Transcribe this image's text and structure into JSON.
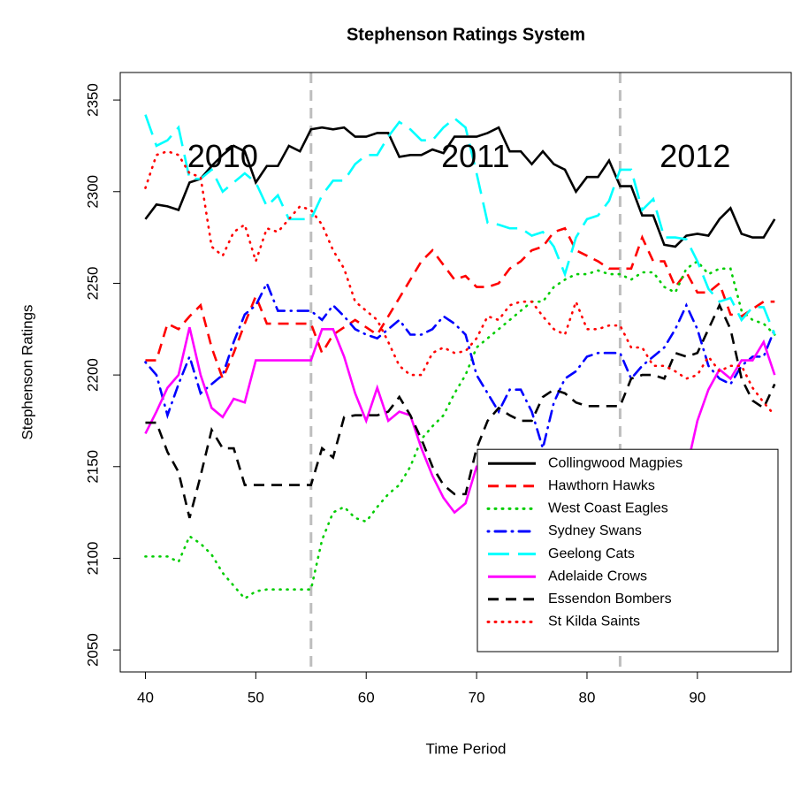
{
  "chart_data": {
    "type": "line",
    "title": "Stephenson  Ratings System",
    "xlabel": "Time Period",
    "ylabel": "Stephenson  Ratings",
    "x": [
      40,
      41,
      42,
      43,
      44,
      45,
      46,
      47,
      48,
      49,
      50,
      51,
      52,
      53,
      54,
      55,
      56,
      57,
      58,
      59,
      60,
      61,
      62,
      63,
      64,
      65,
      66,
      67,
      68,
      69,
      70,
      71,
      72,
      73,
      74,
      75,
      76,
      77,
      78,
      79,
      80,
      81,
      82,
      83,
      84,
      85,
      86,
      87,
      88,
      89,
      90,
      91,
      92,
      93,
      94,
      95,
      96,
      97
    ],
    "xlim": [
      37.72,
      98.5
    ],
    "xticks": [
      40,
      50,
      60,
      70,
      80,
      90
    ],
    "ylim": [
      2038,
      2365
    ],
    "yticks": [
      2050,
      2100,
      2150,
      2200,
      2250,
      2300,
      2350
    ],
    "vlines": [
      55,
      83
    ],
    "vline_color": "#bebebe",
    "annotations": [
      {
        "text": "2010",
        "x": 47,
        "y": 2318
      },
      {
        "text": "2011",
        "x": 69.9,
        "y": 2318
      },
      {
        "text": "2012",
        "x": 89.8,
        "y": 2318
      }
    ],
    "legend": "bottomright",
    "series": [
      {
        "name": "Collingwood Magpies",
        "color": "#000000",
        "linestyle": "solid",
        "values": [
          2285,
          2293,
          2292,
          2290,
          2305,
          2307,
          2314,
          2320,
          2325,
          2322,
          2305,
          2314,
          2314,
          2325,
          2322,
          2334,
          2335,
          2334,
          2335,
          2330,
          2330,
          2332,
          2332,
          2319,
          2320,
          2320,
          2323,
          2321,
          2330,
          2330,
          2330,
          2332,
          2335,
          2322,
          2322,
          2315,
          2322,
          2315,
          2312,
          2300,
          2308,
          2308,
          2317,
          2303,
          2303,
          2287,
          2287,
          2271,
          2270,
          2276,
          2277,
          2276,
          2285,
          2291,
          2277,
          2275,
          2275,
          2285
        ]
      },
      {
        "name": "Hawthorn Hawks",
        "color": "#ff0000",
        "linestyle": "dashed",
        "values": [
          2208,
          2208,
          2228,
          2225,
          2232,
          2238,
          2215,
          2198,
          2212,
          2228,
          2243,
          2228,
          2228,
          2228,
          2228,
          2228,
          2212,
          2222,
          2226,
          2230,
          2226,
          2222,
          2232,
          2242,
          2252,
          2262,
          2268,
          2260,
          2252,
          2254,
          2248,
          2248,
          2250,
          2258,
          2262,
          2268,
          2270,
          2278,
          2280,
          2268,
          2265,
          2262,
          2258,
          2258,
          2258,
          2275,
          2262,
          2262,
          2248,
          2256,
          2245,
          2245,
          2250,
          2233,
          2232,
          2236,
          2240,
          2240
        ]
      },
      {
        "name": "West Coast Eagles",
        "color": "#00cd00",
        "linestyle": "dotted",
        "values": [
          2101,
          2101,
          2101,
          2098,
          2112,
          2108,
          2102,
          2092,
          2085,
          2078,
          2082,
          2083,
          2083,
          2083,
          2083,
          2083,
          2110,
          2125,
          2128,
          2122,
          2120,
          2128,
          2135,
          2140,
          2150,
          2165,
          2172,
          2178,
          2190,
          2200,
          2215,
          2220,
          2225,
          2230,
          2235,
          2240,
          2240,
          2248,
          2252,
          2255,
          2255,
          2257,
          2255,
          2255,
          2252,
          2256,
          2256,
          2248,
          2245,
          2258,
          2262,
          2255,
          2258,
          2258,
          2235,
          2230,
          2228,
          2222
        ]
      },
      {
        "name": "Sydney Swans",
        "color": "#0000ff",
        "linestyle": "dotdash",
        "values": [
          2207,
          2200,
          2178,
          2195,
          2210,
          2190,
          2195,
          2200,
          2218,
          2233,
          2238,
          2250,
          2235,
          2235,
          2235,
          2235,
          2230,
          2238,
          2232,
          2225,
          2222,
          2220,
          2225,
          2230,
          2222,
          2222,
          2225,
          2232,
          2228,
          2222,
          2200,
          2190,
          2180,
          2192,
          2192,
          2180,
          2160,
          2185,
          2198,
          2202,
          2210,
          2212,
          2212,
          2212,
          2198,
          2205,
          2210,
          2215,
          2225,
          2238,
          2225,
          2205,
          2198,
          2195,
          2205,
          2210,
          2210,
          2225
        ]
      },
      {
        "name": "Geelong Cats",
        "color": "#00ffff",
        "linestyle": "longdash",
        "values": [
          2342,
          2325,
          2328,
          2335,
          2307,
          2307,
          2312,
          2300,
          2305,
          2310,
          2305,
          2292,
          2298,
          2285,
          2285,
          2285,
          2298,
          2306,
          2306,
          2315,
          2320,
          2320,
          2330,
          2338,
          2334,
          2328,
          2328,
          2335,
          2340,
          2335,
          2310,
          2283,
          2282,
          2280,
          2280,
          2276,
          2278,
          2270,
          2255,
          2275,
          2285,
          2287,
          2295,
          2312,
          2312,
          2290,
          2296,
          2275,
          2275,
          2274,
          2262,
          2247,
          2240,
          2242,
          2230,
          2237,
          2237,
          2222
        ]
      },
      {
        "name": "Adelaide Crows",
        "color": "#ff00ff",
        "linestyle": "solid",
        "values": [
          2168,
          2180,
          2193,
          2200,
          2226,
          2200,
          2182,
          2177,
          2187,
          2185,
          2208,
          2208,
          2208,
          2208,
          2208,
          2208,
          2225,
          2225,
          2210,
          2190,
          2175,
          2193,
          2175,
          2180,
          2178,
          2160,
          2145,
          2133,
          2125,
          2130,
          2150,
          2150,
          2135,
          2135,
          2145,
          2152,
          2150,
          2150,
          2140,
          2140,
          2140,
          2140,
          2140,
          2140,
          2140,
          2145,
          2152,
          2148,
          2138,
          2148,
          2175,
          2192,
          2203,
          2198,
          2208,
          2208,
          2218,
          2200
        ]
      },
      {
        "name": "Essendon Bombers",
        "color": "#000000",
        "linestyle": "dashed",
        "values": [
          2174,
          2174,
          2158,
          2147,
          2122,
          2145,
          2170,
          2160,
          2160,
          2140,
          2140,
          2140,
          2140,
          2140,
          2140,
          2140,
          2160,
          2155,
          2177,
          2178,
          2178,
          2178,
          2180,
          2188,
          2178,
          2165,
          2150,
          2140,
          2135,
          2135,
          2160,
          2175,
          2182,
          2178,
          2175,
          2175,
          2188,
          2192,
          2190,
          2185,
          2183,
          2183,
          2183,
          2183,
          2198,
          2200,
          2200,
          2198,
          2212,
          2210,
          2212,
          2225,
          2238,
          2225,
          2198,
          2186,
          2182,
          2195
        ]
      },
      {
        "name": "St Kilda Saints",
        "color": "#ff0000",
        "linestyle": "dotted",
        "values": [
          2302,
          2320,
          2322,
          2320,
          2310,
          2308,
          2270,
          2265,
          2278,
          2282,
          2262,
          2280,
          2278,
          2285,
          2292,
          2290,
          2282,
          2268,
          2258,
          2240,
          2235,
          2230,
          2218,
          2205,
          2200,
          2200,
          2212,
          2215,
          2212,
          2213,
          2220,
          2232,
          2230,
          2238,
          2240,
          2240,
          2232,
          2225,
          2222,
          2240,
          2225,
          2225,
          2227,
          2227,
          2215,
          2215,
          2205,
          2205,
          2202,
          2198,
          2200,
          2210,
          2202,
          2205,
          2205,
          2193,
          2185,
          2178
        ]
      }
    ]
  }
}
